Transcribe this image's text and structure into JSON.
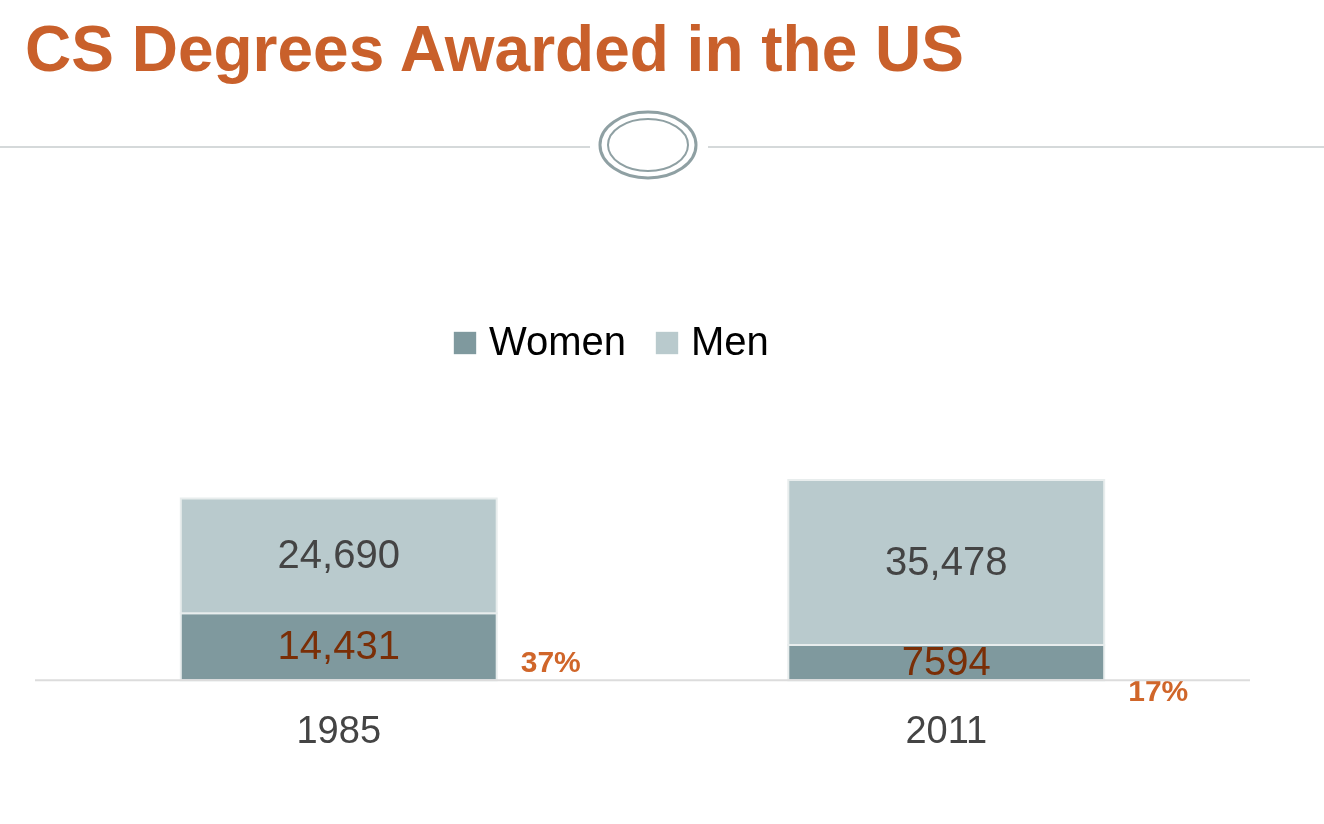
{
  "chart_data": {
    "type": "bar",
    "title": "CS Degrees Awarded in the US",
    "categories": [
      "1985",
      "2011"
    ],
    "stacked": true,
    "legend": "top",
    "series": [
      {
        "name": "Women",
        "color": "#7f999e",
        "values": [
          14431,
          7594
        ],
        "value_labels": [
          "14,431",
          "7594"
        ]
      },
      {
        "name": "Men",
        "color": "#b9cacd",
        "values": [
          24690,
          35478
        ],
        "value_labels": [
          "24,690",
          "35,478"
        ]
      }
    ],
    "annotations": [
      "37%",
      "17%"
    ]
  }
}
